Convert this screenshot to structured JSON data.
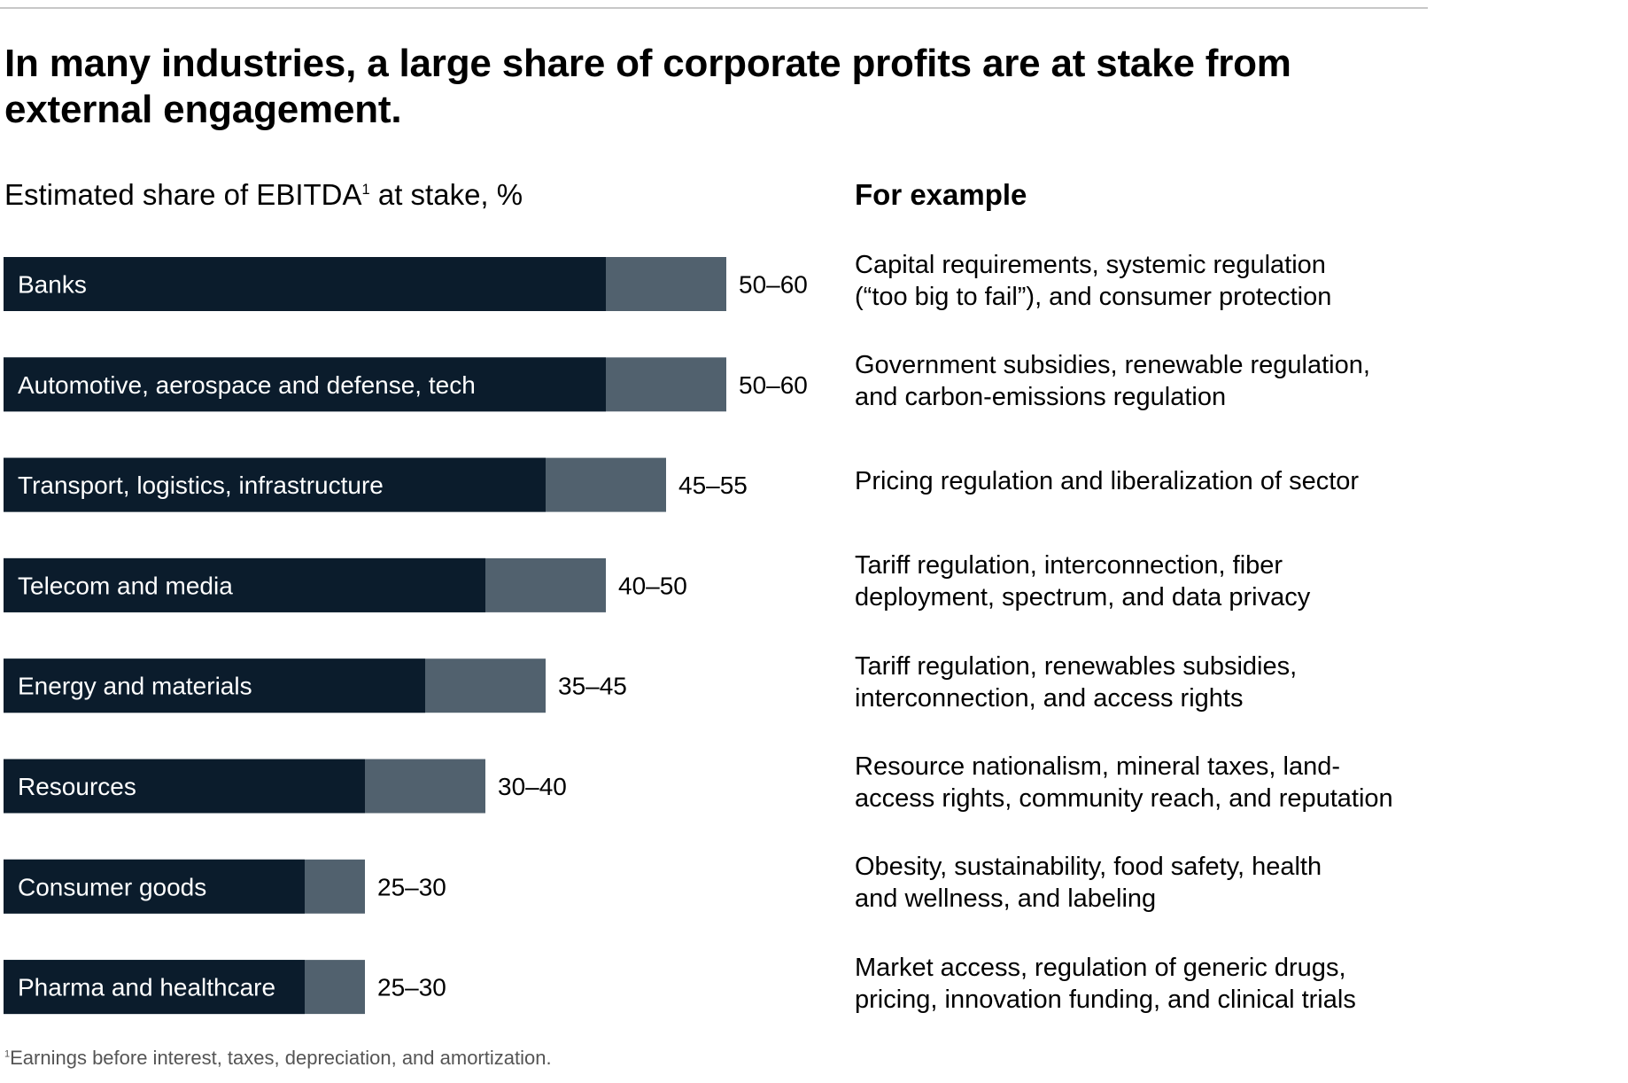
{
  "title": "In many industries, a large share of corporate profits are at stake from external engagement.",
  "subtitle": {
    "text": "Estimated share of EBITDA",
    "footnote_marker": "1",
    "suffix": " at stake, %"
  },
  "examples_heading": "For example",
  "colors": {
    "bar_dark": "#0b1c2c",
    "bar_light": "#51616e",
    "rule": "#c7c7c7"
  },
  "chart_data": {
    "type": "bar",
    "orientation": "horizontal",
    "stacked": true,
    "title": "Estimated share of EBITDA at stake, %",
    "categories": [
      "Banks",
      "Automotive, aerospace and defense, tech",
      "Transport, logistics, infrastructure",
      "Telecom and media",
      "Energy and materials",
      "Resources",
      "Consumer goods",
      "Pharma and healthcare"
    ],
    "range_labels": [
      "50–60",
      "50–60",
      "45–55",
      "40–50",
      "35–45",
      "30–40",
      "25–30",
      "25–30"
    ],
    "low": [
      50,
      50,
      45,
      40,
      35,
      30,
      25,
      25
    ],
    "high": [
      60,
      60,
      55,
      50,
      45,
      40,
      30,
      30
    ],
    "xlim": [
      0,
      60
    ],
    "grid": false,
    "legend": "none"
  },
  "examples": [
    [
      "Capital requirements, systemic regulation",
      "(“too big to fail”), and consumer protection"
    ],
    [
      "Government subsidies, renewable regulation,",
      "and carbon-emissions regulation"
    ],
    [
      "Pricing regulation and liberalization of sector"
    ],
    [
      "Tariff regulation, interconnection, fiber",
      "deployment, spectrum, and data privacy"
    ],
    [
      "Tariff regulation, renewables subsidies,",
      "interconnection, and access rights"
    ],
    [
      "Resource nationalism, mineral taxes, land-",
      "access rights, community reach, and reputation"
    ],
    [
      "Obesity, sustainability, food safety, health",
      "and wellness, and labeling"
    ],
    [
      "Market access, regulation of generic drugs,",
      "pricing, innovation funding, and clinical trials"
    ]
  ],
  "footnote": {
    "marker": "1",
    "text": "Earnings before interest, taxes, depreciation, and amortization."
  }
}
